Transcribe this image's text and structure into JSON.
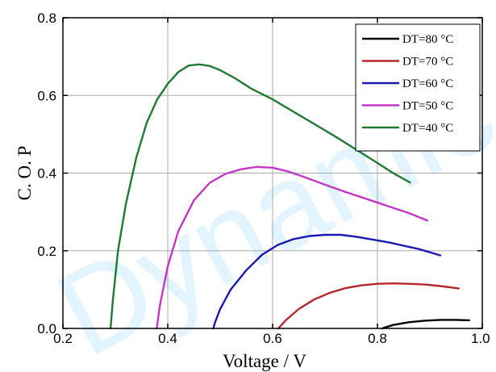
{
  "chart_data": {
    "type": "line",
    "title": "",
    "xlabel": "Voltage / V",
    "ylabel": "C. O. P",
    "xlim": [
      0.2,
      1.0
    ],
    "ylim": [
      0.0,
      0.8
    ],
    "xticks": [
      0.2,
      0.4,
      0.6,
      0.8,
      1.0
    ],
    "xtick_labels": [
      "0.2",
      "0.4",
      "0.6",
      "0.8",
      "1.0"
    ],
    "yticks": [
      0.0,
      0.2,
      0.4,
      0.6,
      0.8
    ],
    "ytick_labels": [
      "0.0",
      "0.2",
      "0.4",
      "0.6",
      "0.8"
    ],
    "grid": true,
    "legend_position": "top-right",
    "watermark_text": "Dynamic",
    "series": [
      {
        "name": "DT=80 °C",
        "color": "#000000",
        "points": [
          [
            0.809,
            0.0
          ],
          [
            0.83,
            0.009
          ],
          [
            0.86,
            0.016
          ],
          [
            0.89,
            0.02
          ],
          [
            0.92,
            0.022
          ],
          [
            0.95,
            0.022
          ],
          [
            0.975,
            0.021
          ]
        ]
      },
      {
        "name": "DT=70 °C",
        "color": "#b3262c",
        "points": [
          [
            0.611,
            0.0
          ],
          [
            0.625,
            0.021
          ],
          [
            0.65,
            0.05
          ],
          [
            0.68,
            0.075
          ],
          [
            0.71,
            0.092
          ],
          [
            0.74,
            0.104
          ],
          [
            0.77,
            0.111
          ],
          [
            0.8,
            0.115
          ],
          [
            0.83,
            0.116
          ],
          [
            0.86,
            0.115
          ],
          [
            0.89,
            0.113
          ],
          [
            0.92,
            0.109
          ],
          [
            0.955,
            0.103
          ]
        ]
      },
      {
        "name": "DT=60 °C",
        "color": "#1a1ab3",
        "points": [
          [
            0.487,
            0.0
          ],
          [
            0.49,
            0.015
          ],
          [
            0.5,
            0.05
          ],
          [
            0.52,
            0.1
          ],
          [
            0.55,
            0.15
          ],
          [
            0.58,
            0.19
          ],
          [
            0.61,
            0.215
          ],
          [
            0.64,
            0.23
          ],
          [
            0.67,
            0.238
          ],
          [
            0.7,
            0.241
          ],
          [
            0.73,
            0.241
          ],
          [
            0.76,
            0.236
          ],
          [
            0.79,
            0.229
          ],
          [
            0.82,
            0.222
          ],
          [
            0.85,
            0.213
          ],
          [
            0.88,
            0.204
          ],
          [
            0.92,
            0.188
          ]
        ]
      },
      {
        "name": "DT=50 °C",
        "color": "#c436c4",
        "points": [
          [
            0.379,
            0.0
          ],
          [
            0.385,
            0.06
          ],
          [
            0.4,
            0.16
          ],
          [
            0.42,
            0.25
          ],
          [
            0.45,
            0.33
          ],
          [
            0.48,
            0.375
          ],
          [
            0.51,
            0.398
          ],
          [
            0.54,
            0.41
          ],
          [
            0.57,
            0.416
          ],
          [
            0.6,
            0.414
          ],
          [
            0.63,
            0.404
          ],
          [
            0.66,
            0.39
          ],
          [
            0.7,
            0.37
          ],
          [
            0.74,
            0.351
          ],
          [
            0.78,
            0.333
          ],
          [
            0.82,
            0.315
          ],
          [
            0.86,
            0.297
          ],
          [
            0.895,
            0.278
          ]
        ]
      },
      {
        "name": "DT=40 °C",
        "color": "#1f7a33",
        "points": [
          [
            0.291,
            0.0
          ],
          [
            0.295,
            0.07
          ],
          [
            0.305,
            0.2
          ],
          [
            0.32,
            0.32
          ],
          [
            0.34,
            0.44
          ],
          [
            0.36,
            0.53
          ],
          [
            0.38,
            0.59
          ],
          [
            0.4,
            0.63
          ],
          [
            0.42,
            0.66
          ],
          [
            0.44,
            0.677
          ],
          [
            0.46,
            0.68
          ],
          [
            0.48,
            0.676
          ],
          [
            0.5,
            0.665
          ],
          [
            0.53,
            0.643
          ],
          [
            0.56,
            0.617
          ],
          [
            0.6,
            0.59
          ],
          [
            0.64,
            0.558
          ],
          [
            0.68,
            0.526
          ],
          [
            0.72,
            0.494
          ],
          [
            0.76,
            0.46
          ],
          [
            0.8,
            0.426
          ],
          [
            0.83,
            0.4
          ],
          [
            0.862,
            0.376
          ]
        ]
      }
    ]
  }
}
